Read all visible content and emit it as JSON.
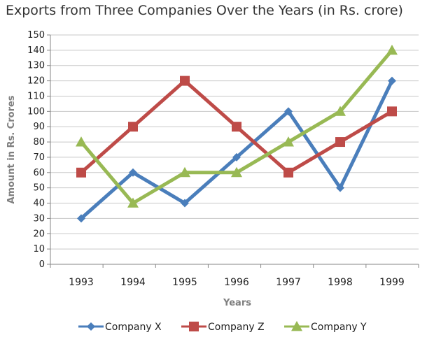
{
  "chart_data": {
    "type": "line",
    "title": "Exports from Three Companies Over the Years (in Rs. crore)",
    "xlabel": "Years",
    "ylabel": "Amount in Rs. Crores",
    "categories": [
      "1993",
      "1994",
      "1995",
      "1996",
      "1997",
      "1998",
      "1999"
    ],
    "ylim": [
      0,
      150
    ],
    "yticks": [
      0,
      10,
      20,
      30,
      40,
      50,
      60,
      70,
      80,
      90,
      100,
      110,
      120,
      130,
      140,
      150
    ],
    "grid": true,
    "legend_position": "bottom",
    "series": [
      {
        "name": "Company X",
        "values": [
          30,
          60,
          40,
          70,
          100,
          50,
          120
        ],
        "color": "#4a7ebb",
        "marker": "diamond"
      },
      {
        "name": "Company Z",
        "values": [
          60,
          90,
          120,
          90,
          60,
          80,
          100
        ],
        "color": "#be4b48",
        "marker": "square"
      },
      {
        "name": "Company Y",
        "values": [
          80,
          40,
          60,
          60,
          80,
          100,
          140
        ],
        "color": "#98b954",
        "marker": "triangle"
      }
    ]
  }
}
